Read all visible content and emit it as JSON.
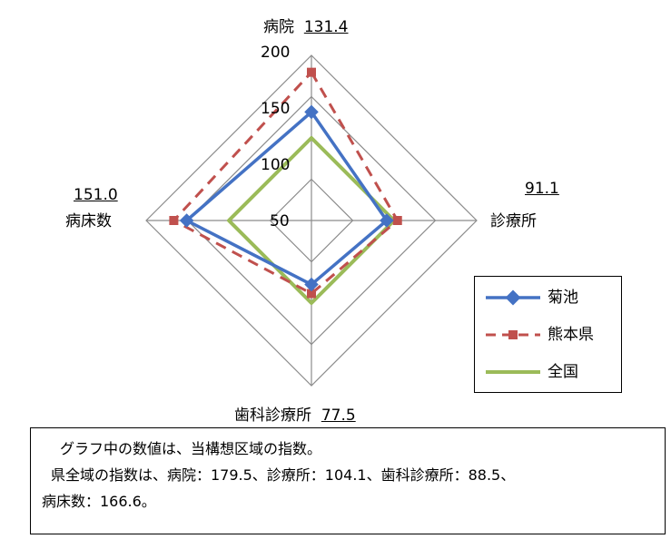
{
  "chart_data": {
    "type": "radar",
    "axes": [
      "病院",
      "診療所",
      "歯科診療所",
      "病床数"
    ],
    "axis_values": [
      "131.4",
      "91.1",
      "77.5",
      "151.0"
    ],
    "ticks": [
      "50",
      "100",
      "150",
      "200"
    ],
    "range": [
      0,
      200
    ],
    "series": [
      {
        "name": "菊池",
        "values": [
          131.4,
          91.1,
          77.5,
          151.0
        ],
        "color": "#4472C4",
        "style": "solid",
        "marker": "diamond"
      },
      {
        "name": "熊本県",
        "values": [
          179.5,
          104.1,
          88.5,
          166.6
        ],
        "color": "#C0504D",
        "style": "dashed",
        "marker": "square"
      },
      {
        "name": "全国",
        "values": [
          100,
          100,
          100,
          100
        ],
        "color": "#9BBB59",
        "style": "solid",
        "marker": "none"
      }
    ],
    "legend_position": "right"
  },
  "note": {
    "line1": "グラフ中の数値は、当構想区域の指数。",
    "line2": "県全域の指数は、病院：179.5、診療所：104.1、歯科診療所：88.5、",
    "line3": "病床数：166.6。"
  }
}
